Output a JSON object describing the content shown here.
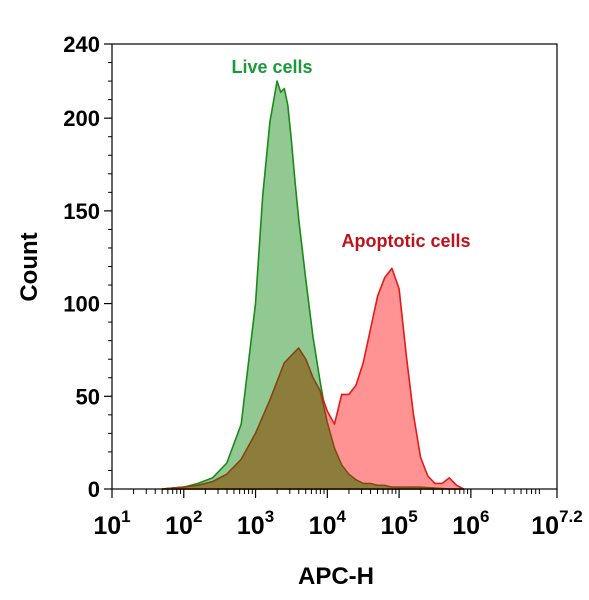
{
  "chart_data": {
    "type": "area",
    "xlabel": "APC-H",
    "ylabel": "Count",
    "xscale": "log",
    "xlim": [
      10,
      15848932
    ],
    "ylim": [
      0,
      240
    ],
    "grid": false,
    "yticks": [
      {
        "value": 0,
        "label": "0"
      },
      {
        "value": 50,
        "label": "50"
      },
      {
        "value": 100,
        "label": "100"
      },
      {
        "value": 150,
        "label": "150"
      },
      {
        "value": 200,
        "label": "200"
      },
      {
        "value": 240,
        "label": "240"
      }
    ],
    "xticks": [
      {
        "value": 10,
        "base": "10",
        "exp": "1"
      },
      {
        "value": 100,
        "base": "10",
        "exp": "2"
      },
      {
        "value": 1000,
        "base": "10",
        "exp": "3"
      },
      {
        "value": 10000,
        "base": "10",
        "exp": "4"
      },
      {
        "value": 100000,
        "base": "10",
        "exp": "5"
      },
      {
        "value": 1000000,
        "base": "10",
        "exp": "6"
      },
      {
        "value": 15848932,
        "base": "10",
        "exp": "7.2"
      }
    ],
    "series": [
      {
        "name": "Live cells",
        "color": "#1a8a1a",
        "fill": "#7fbf7f",
        "x": [
          50,
          100,
          158,
          251,
          398,
          631,
          1000,
          1259,
          1585,
          1995,
          2239,
          2512,
          2818,
          3162,
          3548,
          3981,
          5012,
          6310,
          7943,
          10000,
          12589,
          15849,
          19953,
          25119,
          31623,
          39811,
          50119,
          63096,
          79433,
          100000,
          199526,
          501187,
          794328
        ],
        "values": [
          0,
          1,
          3,
          6,
          14,
          35,
          100,
          158,
          198,
          220,
          214,
          216,
          207,
          188,
          166,
          146,
          113,
          82,
          58,
          36,
          22,
          13,
          8,
          5,
          3,
          3,
          2,
          2,
          1,
          1,
          1,
          0,
          0
        ]
      },
      {
        "name": "Apoptotic cells",
        "color": "#e41a1a",
        "fill": "#ff7f7f",
        "x": [
          50,
          100,
          158,
          251,
          398,
          631,
          1000,
          1585,
          2512,
          3162,
          3981,
          5012,
          6310,
          7943,
          10000,
          12589,
          15849,
          19953,
          25119,
          31623,
          39811,
          50119,
          63096,
          79433,
          100000,
          125893,
          158489,
          199526,
          251189,
          316228,
          398107,
          501187,
          630957,
          794328
        ],
        "values": [
          0,
          1,
          2,
          4,
          8,
          16,
          30,
          48,
          68,
          72,
          76,
          70,
          60,
          53,
          42,
          35,
          51,
          51,
          56,
          68,
          86,
          104,
          114,
          119,
          108,
          72,
          40,
          17,
          7,
          3,
          3,
          6,
          2,
          0
        ]
      }
    ]
  }
}
